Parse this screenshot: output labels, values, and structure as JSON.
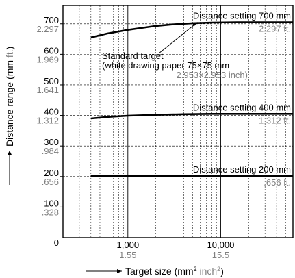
{
  "chart_data": {
    "type": "line",
    "x_scale": "log",
    "y_scale": "linear",
    "xlim": [
      200,
      60000
    ],
    "ylim": [
      0,
      760
    ],
    "grid": true,
    "xlabel": "Target size (mm",
    "xlabel_sup1": "2",
    "xlabel_alt": " inch",
    "xlabel_sup2": "2",
    "xlabel_close": ")",
    "ylabel": "Distance range (mm ",
    "ylabel_alt": "ft.",
    "ylabel_close": ")",
    "y_ticks": [
      {
        "mm": "700",
        "ft": "2.297",
        "value": 700
      },
      {
        "mm": "600",
        "ft": "1.969",
        "value": 600
      },
      {
        "mm": "500",
        "ft": "1.641",
        "value": 500
      },
      {
        "mm": "400",
        "ft": "1.312",
        "value": 400
      },
      {
        "mm": "300",
        "ft": ".984",
        "value": 300
      },
      {
        "mm": "200",
        "ft": ".656",
        "value": 200
      },
      {
        "mm": "100",
        "ft": ".328",
        "value": 100
      }
    ],
    "y_zero_label": "0",
    "x_ticks": [
      {
        "mm2": "1,000",
        "inch2": "1.55",
        "value": 1000
      },
      {
        "mm2": "10,000",
        "inch2": "15.5",
        "value": 10000
      }
    ],
    "series": [
      {
        "name": "Distance setting 700 mm",
        "ft_label": "2.297 ft.",
        "x": [
          400,
          600,
          1000,
          2000,
          3000,
          5000,
          8000,
          15000,
          30000,
          60000
        ],
        "y": [
          655,
          668,
          680,
          693,
          698,
          702,
          704,
          705,
          705,
          705
        ]
      },
      {
        "name": "Distance setting 400 mm",
        "ft_label": "1.312 ft.",
        "x": [
          400,
          600,
          1000,
          2000,
          4000,
          8000,
          20000,
          60000
        ],
        "y": [
          390,
          395,
          399,
          402,
          404,
          405,
          405,
          405
        ]
      },
      {
        "name": "Distance setting 200 mm",
        "ft_label": ".656 ft.",
        "x": [
          400,
          1000,
          5000,
          20000,
          60000
        ],
        "y": [
          201,
          202,
          202,
          202,
          202
        ]
      }
    ],
    "annotations": [
      {
        "line1": "Standard target",
        "line2": "(white drawing paper 75×75 mm",
        "line3": "2.953×2.953 inch)",
        "x": 5625,
        "y": 705
      }
    ]
  },
  "colors": {
    "primary": "#000000",
    "imperial": "#7f7f7f"
  }
}
